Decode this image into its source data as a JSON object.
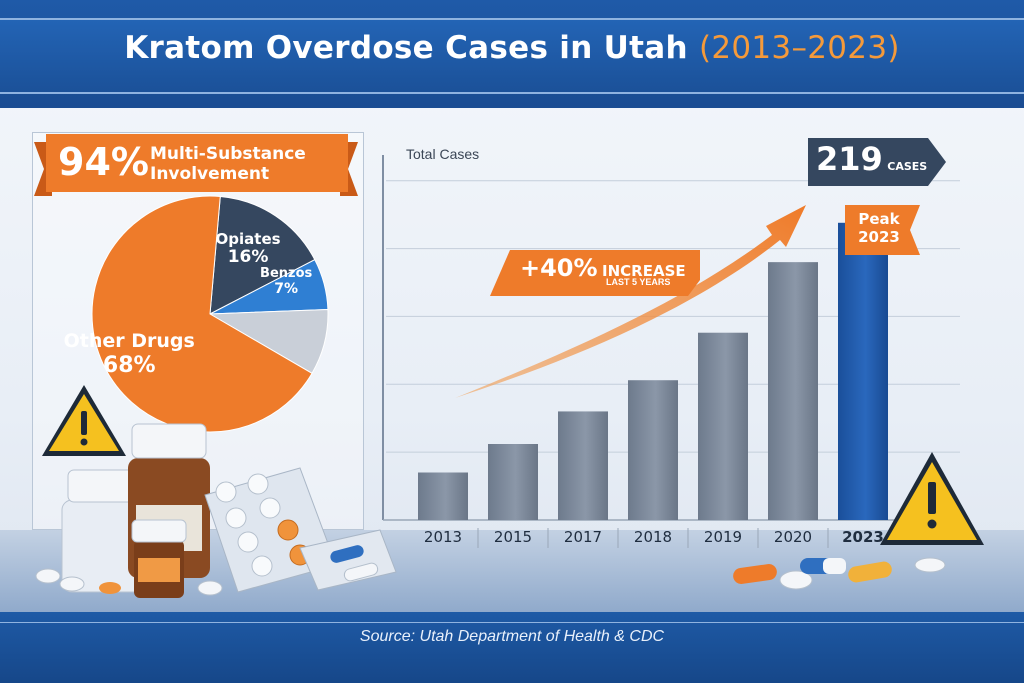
{
  "header": {
    "title": "Kratom Overdose Cases in Utah",
    "title_years": "(2013–2023)"
  },
  "callouts": {
    "multi_substance_pct": "94%",
    "multi_substance_label_line1": "Multi-Substance",
    "multi_substance_label_line2": "Involvement",
    "increase_value": "+40%",
    "increase_label": "INCREASE",
    "increase_sublabel": "LAST 5 YEARS",
    "total_number": "219",
    "total_unit": "CASES",
    "peak_line1": "Peak",
    "peak_line2": "2023"
  },
  "footer": {
    "source": "Source: Utah Department of Health & CDC"
  },
  "colors": {
    "orange": "#ee7b2a",
    "navy": "#35475f",
    "blue": "#2f7fd3",
    "gray_slice": "#c9cfd8",
    "bar_gray": "#7c8899",
    "bar_peak": "#1f57a8"
  },
  "chart_data": [
    {
      "type": "pie",
      "labels": [
        "Opiates",
        "Benzos",
        "",
        "Other Drugs"
      ],
      "values": [
        16,
        7,
        9,
        68
      ],
      "display_values": [
        "16%",
        "7%",
        "",
        "68%"
      ],
      "colors": [
        "#35475f",
        "#2f7fd3",
        "#c9cfd8",
        "#ee7b2a"
      ]
    },
    {
      "type": "bar",
      "ylabel": "Total Cases",
      "categories": [
        "2013",
        "2015",
        "2017",
        "2018",
        "2019",
        "2020",
        "2023"
      ],
      "values": [
        35,
        56,
        80,
        103,
        138,
        190,
        219
      ],
      "ylim": [
        0,
        280
      ],
      "grid": true,
      "highlight_index": 6
    }
  ]
}
